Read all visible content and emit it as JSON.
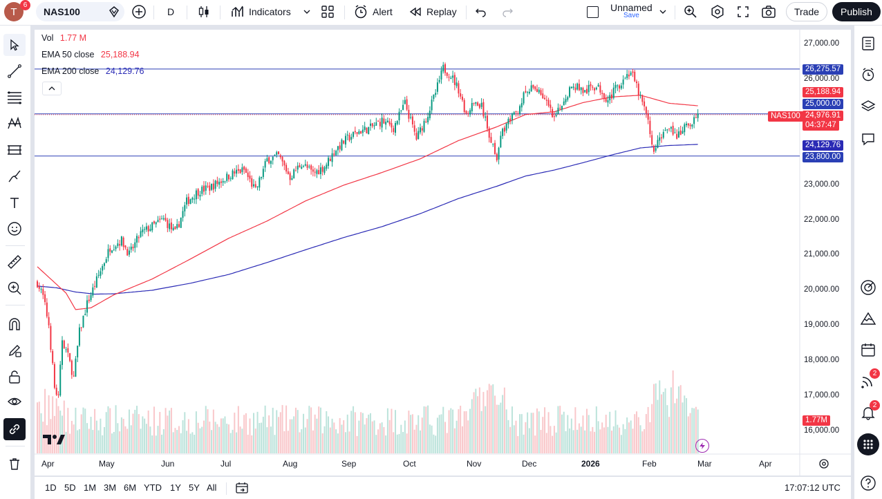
{
  "header": {
    "avatar_letter": "T",
    "avatar_badge": "6",
    "symbol": "NAS100",
    "interval": "D",
    "indicators_label": "Indicators",
    "alert_label": "Alert",
    "replay_label": "Replay",
    "layout_name": "Unnamed",
    "layout_save": "Save",
    "trade_label": "Trade",
    "publish_label": "Publish"
  },
  "legend": {
    "vol_label": "Vol",
    "vol_value": "1.77 M",
    "ema50_label": "EMA 50 close",
    "ema50_value": "25,188.94",
    "ema200_label": "EMA 200 close",
    "ema200_value": "24,129.76"
  },
  "price_axis": [
    "27,000.00",
    "26,000.00",
    "23,000.00",
    "22,000.00",
    "21,000.00",
    "20,000.00",
    "19,000.00",
    "18,000.00",
    "17,000.00",
    "16,000.00"
  ],
  "tags": {
    "h1": "26,275.57",
    "ema50": "25,188.94",
    "level": "25,000.00",
    "symbol": "NAS100",
    "last": "24,976.91",
    "countdown": "04:37:47",
    "ema200": "24,129.76",
    "h2": "23,800.00",
    "vol": "1.77M"
  },
  "time_axis": [
    "Apr",
    "May",
    "Jun",
    "Jul",
    "Aug",
    "Sep",
    "Oct",
    "Nov",
    "Dec",
    "2026",
    "Feb",
    "Mar",
    "Apr"
  ],
  "bottom": {
    "timeframes": [
      "1D",
      "5D",
      "1M",
      "3M",
      "6M",
      "YTD",
      "1Y",
      "5Y",
      "All"
    ],
    "clock": "17:07:12 UTC"
  },
  "right_badges": {
    "ideas": "2",
    "alerts": "2"
  },
  "colors": {
    "up": "#089981",
    "down": "#f23645",
    "ema50": "#f23645",
    "ema200": "#2a2ab5",
    "hline": "#2a3fb5"
  },
  "chart_data": {
    "type": "candlestick",
    "title": "NAS100, 1D",
    "ylim": [
      15600,
      27200
    ],
    "horizontal_lines": [
      26275.57,
      25000.0,
      23800.0
    ],
    "ema50_anchors": [
      [
        0,
        20650
      ],
      [
        15,
        19900
      ],
      [
        20,
        19430
      ],
      [
        28,
        19480
      ],
      [
        40,
        19850
      ],
      [
        60,
        20300
      ],
      [
        80,
        20870
      ],
      [
        100,
        21460
      ],
      [
        120,
        21950
      ],
      [
        140,
        22520
      ],
      [
        160,
        22970
      ],
      [
        180,
        23330
      ],
      [
        200,
        23720
      ],
      [
        220,
        24240
      ],
      [
        240,
        24630
      ],
      [
        255,
        24980
      ],
      [
        270,
        25060
      ],
      [
        285,
        25320
      ],
      [
        300,
        25480
      ],
      [
        315,
        25530
      ],
      [
        330,
        25300
      ],
      [
        345,
        25230
      ]
    ],
    "ema200_anchors": [
      [
        0,
        20100
      ],
      [
        10,
        20050
      ],
      [
        20,
        19930
      ],
      [
        30,
        19870
      ],
      [
        40,
        19880
      ],
      [
        60,
        19980
      ],
      [
        80,
        20180
      ],
      [
        100,
        20430
      ],
      [
        120,
        20770
      ],
      [
        140,
        21130
      ],
      [
        160,
        21480
      ],
      [
        180,
        21790
      ],
      [
        200,
        22160
      ],
      [
        220,
        22590
      ],
      [
        240,
        22940
      ],
      [
        255,
        23230
      ],
      [
        270,
        23400
      ],
      [
        285,
        23610
      ],
      [
        300,
        23830
      ],
      [
        315,
        24030
      ],
      [
        330,
        24100
      ],
      [
        345,
        24130
      ]
    ],
    "price_path": [
      [
        0,
        20200
      ],
      [
        3,
        19800
      ],
      [
        6,
        19000
      ],
      [
        9,
        17200
      ],
      [
        11,
        16900
      ],
      [
        13,
        18600
      ],
      [
        16,
        18100
      ],
      [
        19,
        17500
      ],
      [
        22,
        18800
      ],
      [
        26,
        19600
      ],
      [
        32,
        20400
      ],
      [
        38,
        21200
      ],
      [
        44,
        21400
      ],
      [
        48,
        21000
      ],
      [
        54,
        21600
      ],
      [
        60,
        21800
      ],
      [
        66,
        22000
      ],
      [
        72,
        21600
      ],
      [
        78,
        22500
      ],
      [
        84,
        22800
      ],
      [
        90,
        22900
      ],
      [
        96,
        23100
      ],
      [
        102,
        23300
      ],
      [
        108,
        23400
      ],
      [
        114,
        22800
      ],
      [
        120,
        23700
      ],
      [
        126,
        23800
      ],
      [
        132,
        23200
      ],
      [
        138,
        23600
      ],
      [
        144,
        23300
      ],
      [
        150,
        23500
      ],
      [
        156,
        24000
      ],
      [
        162,
        24300
      ],
      [
        168,
        24500
      ],
      [
        174,
        24600
      ],
      [
        180,
        24800
      ],
      [
        186,
        24600
      ],
      [
        192,
        25300
      ],
      [
        198,
        24300
      ],
      [
        204,
        25000
      ],
      [
        208,
        25600
      ],
      [
        212,
        26300
      ],
      [
        216,
        26100
      ],
      [
        220,
        25700
      ],
      [
        224,
        25000
      ],
      [
        228,
        25300
      ],
      [
        232,
        25200
      ],
      [
        236,
        24400
      ],
      [
        240,
        23800
      ],
      [
        243,
        24500
      ],
      [
        246,
        24800
      ],
      [
        250,
        25000
      ],
      [
        254,
        25500
      ],
      [
        258,
        25700
      ],
      [
        262,
        25700
      ],
      [
        266,
        25300
      ],
      [
        270,
        24800
      ],
      [
        274,
        25300
      ],
      [
        278,
        25700
      ],
      [
        282,
        25800
      ],
      [
        286,
        25600
      ],
      [
        290,
        25800
      ],
      [
        294,
        25700
      ],
      [
        298,
        25400
      ],
      [
        302,
        25700
      ],
      [
        306,
        26000
      ],
      [
        310,
        26200
      ],
      [
        314,
        25600
      ],
      [
        318,
        25000
      ],
      [
        322,
        23900
      ],
      [
        326,
        24400
      ],
      [
        330,
        24700
      ],
      [
        334,
        24300
      ],
      [
        338,
        24600
      ],
      [
        342,
        24800
      ],
      [
        345,
        24977
      ]
    ],
    "volume_max": 4000000
  }
}
